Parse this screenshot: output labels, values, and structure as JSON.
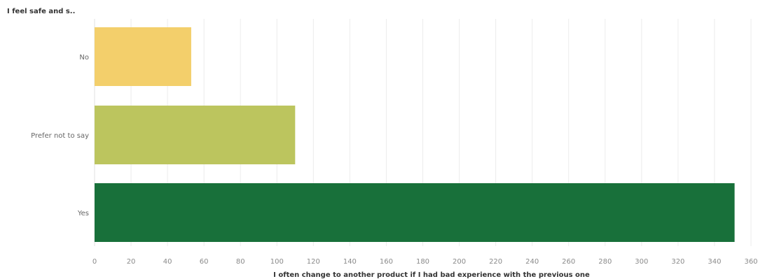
{
  "chart_data": {
    "type": "bar",
    "orientation": "horizontal",
    "ylabel": "I feel safe and s..",
    "xlabel": "I often change to another product if I had bad experience with the previous one",
    "categories": [
      "No",
      "Prefer not to say",
      "Yes"
    ],
    "values": [
      53,
      110,
      351
    ],
    "colors": [
      "#f3cf6b",
      "#bcc55e",
      "#18703a"
    ],
    "xlim": [
      0,
      360
    ],
    "xticks": [
      0,
      20,
      40,
      60,
      80,
      100,
      120,
      140,
      160,
      180,
      200,
      220,
      240,
      260,
      280,
      300,
      320,
      340,
      360
    ],
    "grid": true
  }
}
